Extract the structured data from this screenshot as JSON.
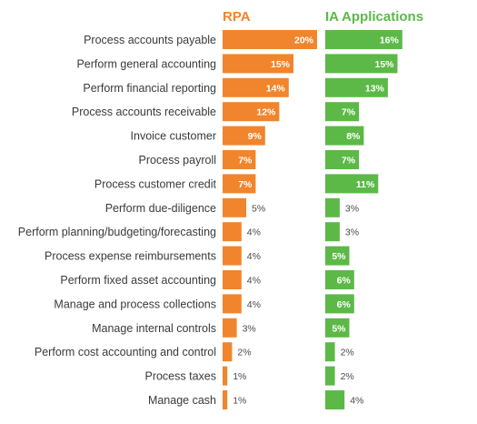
{
  "chart_data": {
    "type": "bar",
    "orientation": "horizontal",
    "categories": [
      "Process accounts payable",
      "Perform general accounting",
      "Perform financial reporting",
      "Process accounts receivable",
      "Invoice customer",
      "Process payroll",
      "Process customer credit",
      "Perform due-diligence",
      "Perform planning/budgeting/forecasting",
      "Process expense reimbursements",
      "Perform fixed asset accounting",
      "Manage and process collections",
      "Manage internal controls",
      "Perform cost accounting and control",
      "Process taxes",
      "Manage cash"
    ],
    "series": [
      {
        "name": "RPA",
        "color": "#f0852d",
        "values": [
          20,
          15,
          14,
          12,
          9,
          7,
          7,
          5,
          4,
          4,
          4,
          4,
          3,
          2,
          1,
          1
        ]
      },
      {
        "name": "IA Applications",
        "color": "#5cb947",
        "values": [
          16,
          15,
          13,
          7,
          8,
          7,
          11,
          3,
          3,
          5,
          6,
          6,
          5,
          2,
          2,
          4
        ]
      }
    ],
    "value_suffix": "%",
    "grid": false,
    "legend": "top"
  }
}
